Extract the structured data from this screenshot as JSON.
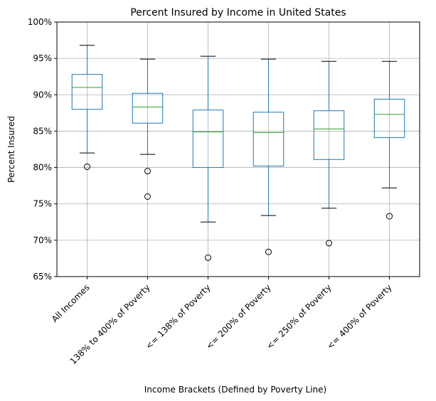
{
  "chart_data": {
    "type": "box",
    "title": "Percent Insured by Income in United States",
    "xlabel": "Income Brackets (Defined by Poverty Line)",
    "ylabel": "Percent Insured",
    "ylim": [
      65,
      100
    ],
    "yticks": [
      65,
      70,
      75,
      80,
      85,
      90,
      95,
      100
    ],
    "ytick_labels": [
      "65%",
      "70%",
      "75%",
      "80%",
      "85%",
      "90%",
      "95%",
      "100%"
    ],
    "grid": true,
    "categories": [
      "All Incomes",
      "138% to 400% of Poverty",
      "<= 138% of Poverty",
      "<= 200% of Poverty",
      "<= 250% of Poverty",
      "<= 400% of Poverty"
    ],
    "boxes": [
      {
        "whisker_low": 82.0,
        "q1": 88.0,
        "median": 91.0,
        "q3": 92.8,
        "whisker_high": 96.8,
        "outliers": [
          80.1
        ]
      },
      {
        "whisker_low": 81.8,
        "q1": 86.1,
        "median": 88.3,
        "q3": 90.2,
        "whisker_high": 94.9,
        "outliers": [
          79.5,
          76.0
        ]
      },
      {
        "whisker_low": 72.5,
        "q1": 80.0,
        "median": 84.9,
        "q3": 87.9,
        "whisker_high": 95.3,
        "outliers": [
          67.6
        ]
      },
      {
        "whisker_low": 73.4,
        "q1": 80.2,
        "median": 84.8,
        "q3": 87.6,
        "whisker_high": 94.9,
        "outliers": [
          68.4
        ]
      },
      {
        "whisker_low": 74.4,
        "q1": 81.1,
        "median": 85.3,
        "q3": 87.8,
        "whisker_high": 94.6,
        "outliers": [
          69.6
        ]
      },
      {
        "whisker_low": 77.2,
        "q1": 84.1,
        "median": 87.3,
        "q3": 89.4,
        "whisker_high": 94.6,
        "outliers": [
          73.3
        ]
      }
    ],
    "colors": {
      "box": "#1f77b4",
      "median": "#2ca02c",
      "cap": "#000000",
      "grid": "#b0b0b0",
      "axis": "#000000"
    }
  }
}
